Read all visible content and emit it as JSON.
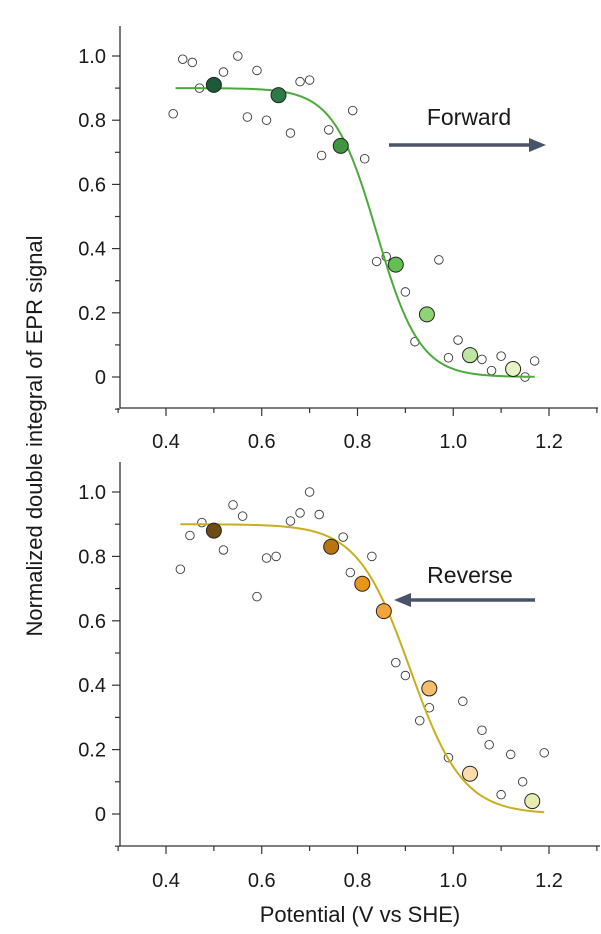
{
  "axes": {
    "ylabel": "Normalized double integral of EPR signal",
    "xlabel": "Potential (V vs SHE)"
  },
  "chart_data": [
    {
      "type": "scatter",
      "panel": "top",
      "annotation": "Forward",
      "xlim": [
        0.3,
        1.35
      ],
      "ylim": [
        -0.1,
        1.1
      ],
      "x_ticks": [
        "0.4",
        "0.6",
        "0.8",
        "1.0",
        "1.2"
      ],
      "y_ticks": [
        "0",
        "0.2",
        "0.4",
        "0.6",
        "0.8",
        "1.0"
      ],
      "fit_color": "#4caa3c",
      "arrow_color": "#4a5468",
      "fit_curve": {
        "plateau": 0.9,
        "midpoint": 0.84,
        "width": 0.045,
        "x_range": [
          0.42,
          1.17
        ]
      },
      "raw_points": [
        [
          0.415,
          0.82
        ],
        [
          0.435,
          0.99
        ],
        [
          0.455,
          0.98
        ],
        [
          0.47,
          0.9
        ],
        [
          0.52,
          0.95
        ],
        [
          0.55,
          1.0
        ],
        [
          0.57,
          0.81
        ],
        [
          0.59,
          0.955
        ],
        [
          0.61,
          0.8
        ],
        [
          0.66,
          0.76
        ],
        [
          0.68,
          0.92
        ],
        [
          0.7,
          0.925
        ],
        [
          0.725,
          0.69
        ],
        [
          0.74,
          0.77
        ],
        [
          0.79,
          0.83
        ],
        [
          0.815,
          0.68
        ],
        [
          0.84,
          0.36
        ],
        [
          0.86,
          0.375
        ],
        [
          0.9,
          0.265
        ],
        [
          0.92,
          0.11
        ],
        [
          0.97,
          0.365
        ],
        [
          0.99,
          0.06
        ],
        [
          1.01,
          0.115
        ],
        [
          1.06,
          0.055
        ],
        [
          1.08,
          0.02
        ],
        [
          1.1,
          0.065
        ],
        [
          1.15,
          0.0
        ],
        [
          1.17,
          0.05
        ]
      ],
      "mean_points": [
        {
          "x": 0.5,
          "y": 0.91,
          "color": "#1d5a3a"
        },
        {
          "x": 0.635,
          "y": 0.878,
          "color": "#2d7a44"
        },
        {
          "x": 0.765,
          "y": 0.72,
          "color": "#3e9640"
        },
        {
          "x": 0.88,
          "y": 0.35,
          "color": "#63bf52"
        },
        {
          "x": 0.945,
          "y": 0.195,
          "color": "#8ed475"
        },
        {
          "x": 1.035,
          "y": 0.068,
          "color": "#bde6a2"
        },
        {
          "x": 1.125,
          "y": 0.025,
          "color": "#e8f5c6"
        }
      ]
    },
    {
      "type": "scatter",
      "panel": "bottom",
      "annotation": "Reverse",
      "xlim": [
        0.3,
        1.32
      ],
      "ylim": [
        -0.1,
        1.1
      ],
      "x_ticks": [
        "0.4",
        "0.6",
        "0.8",
        "1.0",
        "1.2"
      ],
      "y_ticks": [
        "0",
        "0.2",
        "0.4",
        "0.6",
        "0.8",
        "1.0"
      ],
      "fit_color": "#c9ae1e",
      "arrow_color": "#4a5468",
      "fit_curve": {
        "plateau": 0.9,
        "midpoint": 0.91,
        "width": 0.055,
        "x_range": [
          0.43,
          1.19
        ]
      },
      "raw_points": [
        [
          0.43,
          0.76
        ],
        [
          0.45,
          0.865
        ],
        [
          0.475,
          0.905
        ],
        [
          0.52,
          0.82
        ],
        [
          0.54,
          0.96
        ],
        [
          0.56,
          0.925
        ],
        [
          0.59,
          0.675
        ],
        [
          0.61,
          0.795
        ],
        [
          0.63,
          0.8
        ],
        [
          0.66,
          0.91
        ],
        [
          0.68,
          0.935
        ],
        [
          0.7,
          1.0
        ],
        [
          0.72,
          0.93
        ],
        [
          0.77,
          0.86
        ],
        [
          0.785,
          0.75
        ],
        [
          0.83,
          0.8
        ],
        [
          0.88,
          0.47
        ],
        [
          0.9,
          0.43
        ],
        [
          0.93,
          0.29
        ],
        [
          0.95,
          0.33
        ],
        [
          0.99,
          0.175
        ],
        [
          1.02,
          0.35
        ],
        [
          1.06,
          0.26
        ],
        [
          1.075,
          0.215
        ],
        [
          1.1,
          0.06
        ],
        [
          1.12,
          0.185
        ],
        [
          1.145,
          0.1
        ],
        [
          1.19,
          0.19
        ]
      ],
      "mean_points": [
        {
          "x": 0.5,
          "y": 0.88,
          "color": "#6e4a14"
        },
        {
          "x": 0.745,
          "y": 0.83,
          "color": "#b8740e"
        },
        {
          "x": 0.81,
          "y": 0.715,
          "color": "#e8951e"
        },
        {
          "x": 0.855,
          "y": 0.63,
          "color": "#f4a33c"
        },
        {
          "x": 0.95,
          "y": 0.39,
          "color": "#f8bd6a"
        },
        {
          "x": 1.035,
          "y": 0.125,
          "color": "#fbdcaa"
        },
        {
          "x": 1.165,
          "y": 0.04,
          "color": "#e8ecb0"
        }
      ]
    }
  ]
}
